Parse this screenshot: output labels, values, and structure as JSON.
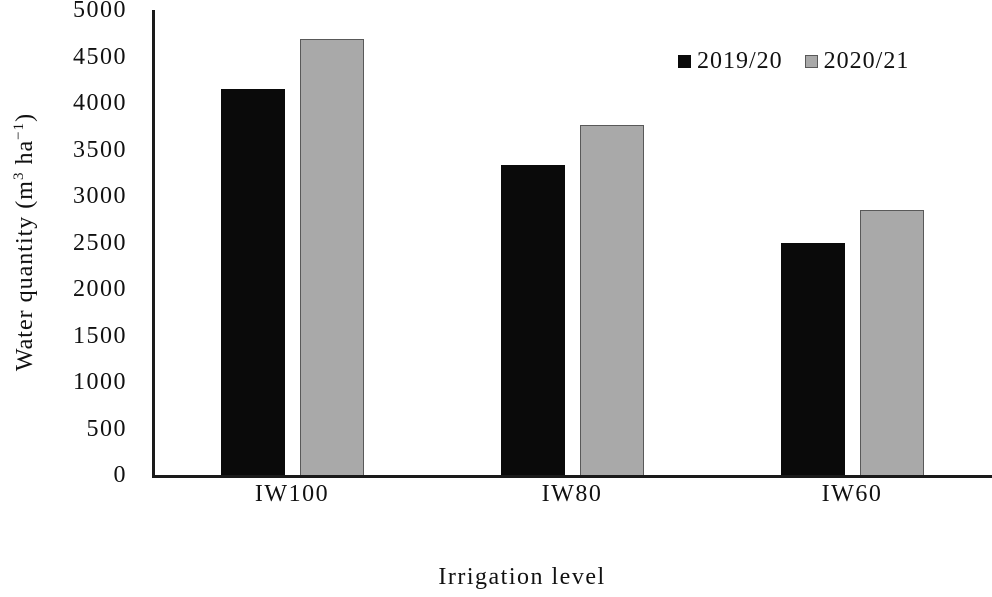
{
  "chart_data": {
    "type": "bar",
    "title": "",
    "xlabel": "Irrigation level",
    "ylabel": "Water quantity (m³ ha⁻¹)",
    "ylabel_parts": {
      "text1": "Water quantity (m",
      "sup1": "3",
      "text2": " ha",
      "sup2": "−1",
      "text3": ")"
    },
    "categories": [
      "IW100",
      "IW80",
      "IW60"
    ],
    "series": [
      {
        "name": "2019/20",
        "color": "#0a0a0a",
        "border_color": "#0a0a0a",
        "values": [
          4150,
          3330,
          2500
        ]
      },
      {
        "name": "2020/21",
        "color": "#a9a9a9",
        "border_color": "#595959",
        "values": [
          4690,
          3760,
          2850
        ]
      }
    ],
    "ylim": [
      0,
      5000
    ],
    "yticks": [
      0,
      500,
      1000,
      1500,
      2000,
      2500,
      3000,
      3500,
      4000,
      4500,
      5000
    ],
    "grid": false,
    "legend_position": "top-right",
    "axis_color": "#1a1a1a",
    "background": "#ffffff"
  }
}
